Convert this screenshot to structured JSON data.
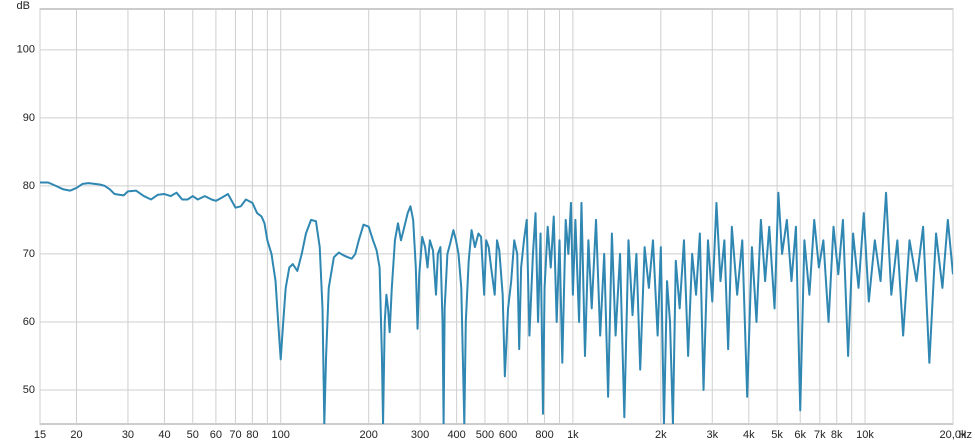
{
  "chart_data": {
    "type": "line",
    "y_label": "dB",
    "x_unit": "Hz",
    "log_x": true,
    "grid": true,
    "color": "#2f87b2",
    "xlim": [
      15,
      20000
    ],
    "ylim": [
      45,
      106
    ],
    "yticks": [
      50,
      60,
      70,
      80,
      90,
      100
    ],
    "xticks": [
      15,
      20,
      30,
      40,
      50,
      60,
      70,
      80,
      100,
      200,
      300,
      400,
      500,
      600,
      800,
      {
        "value": 1000,
        "label": "1k"
      },
      {
        "value": 2000,
        "label": "2k"
      },
      {
        "value": 3000,
        "label": "3k"
      },
      {
        "value": 4000,
        "label": "4k"
      },
      {
        "value": 5000,
        "label": "5k"
      },
      {
        "value": 6000,
        "label": "6k"
      },
      {
        "value": 7000,
        "label": "7k"
      },
      {
        "value": 8000,
        "label": "8k"
      },
      {
        "value": 10000,
        "label": "10k"
      },
      {
        "value": 20000,
        "label": "20,0k"
      }
    ],
    "xminor": [
      90,
      700,
      900,
      9000
    ],
    "x": [
      15,
      16,
      17,
      18,
      19,
      20,
      21,
      22,
      24,
      25,
      26,
      27,
      28,
      29,
      30,
      32,
      34,
      36,
      38,
      40,
      42,
      44,
      46,
      48,
      50,
      52,
      55,
      58,
      60,
      63,
      66,
      70,
      73,
      76,
      80,
      83,
      86,
      88,
      90,
      93,
      96,
      98,
      100,
      102,
      104,
      107,
      110,
      114,
      118,
      122,
      127,
      132,
      136,
      139,
      141,
      143,
      146,
      152,
      158,
      164,
      170,
      175,
      180,
      185,
      192,
      200,
      207,
      213,
      218,
      222,
      224,
      227,
      230,
      233,
      236,
      240,
      246,
      252,
      258,
      265,
      272,
      278,
      284,
      290,
      294,
      298,
      305,
      312,
      318,
      324,
      332,
      340,
      345,
      352,
      358,
      361,
      364,
      372,
      380,
      390,
      398,
      406,
      415,
      420,
      425,
      430,
      440,
      450,
      462,
      475,
      485,
      497,
      505,
      515,
      525,
      540,
      550,
      560,
      575,
      585,
      600,
      615,
      630,
      645,
      655,
      665,
      680,
      695,
      710,
      730,
      745,
      760,
      775,
      790,
      800,
      820,
      840,
      860,
      880,
      900,
      920,
      945,
      965,
      985,
      1000,
      1020,
      1050,
      1070,
      1100,
      1130,
      1160,
      1200,
      1240,
      1280,
      1320,
      1360,
      1400,
      1450,
      1500,
      1550,
      1600,
      1650,
      1700,
      1760,
      1820,
      1880,
      1950,
      2000,
      2050,
      2100,
      2150,
      2200,
      2250,
      2320,
      2400,
      2480,
      2560,
      2640,
      2720,
      2800,
      2900,
      3000,
      3100,
      3200,
      3300,
      3400,
      3500,
      3650,
      3800,
      3950,
      4100,
      4250,
      4400,
      4550,
      4700,
      4900,
      5050,
      5200,
      5400,
      5600,
      5800,
      6000,
      6200,
      6450,
      6700,
      6950,
      7200,
      7500,
      7800,
      8100,
      8400,
      8750,
      9100,
      9500,
      9900,
      10300,
      10800,
      11300,
      11800,
      12300,
      12900,
      13500,
      14200,
      15000,
      15800,
      16600,
      17500,
      18400,
      19200,
      20000
    ],
    "values": [
      80.5,
      80.5,
      80,
      79.5,
      79.3,
      79.7,
      80.3,
      80.4,
      80.2,
      80,
      79.5,
      78.8,
      78.7,
      78.6,
      79.2,
      79.3,
      78.5,
      78,
      78.7,
      78.8,
      78.5,
      79,
      78,
      78,
      78.5,
      78,
      78.5,
      78,
      77.8,
      78.3,
      78.8,
      76.8,
      77,
      78,
      77.5,
      76,
      75.5,
      74.5,
      72,
      70,
      66,
      60,
      54.5,
      60,
      65,
      68,
      68.5,
      67.5,
      70,
      73,
      75,
      74.8,
      71,
      62,
      45,
      55,
      65,
      69.5,
      70.2,
      69.8,
      69.5,
      69.3,
      70,
      72,
      74.3,
      74,
      72,
      70.5,
      68,
      55,
      45,
      60,
      64,
      62,
      58.5,
      65,
      72,
      74.5,
      72,
      74,
      76,
      77,
      75,
      68,
      59,
      67,
      72.5,
      71,
      68,
      72,
      70.5,
      64,
      70,
      71,
      60,
      45,
      62,
      70,
      71.5,
      73.5,
      72,
      70,
      65,
      55,
      45,
      60,
      69,
      73.5,
      71,
      73,
      72.5,
      64,
      72,
      71,
      68,
      64,
      72,
      70.5,
      64,
      52,
      62,
      66,
      72,
      70,
      56,
      68,
      72,
      75,
      58,
      70,
      76,
      60,
      73,
      46.5,
      65,
      74,
      68,
      75.5,
      60,
      72,
      54,
      75,
      70,
      77.5,
      64,
      75,
      60,
      77.5,
      55,
      72,
      62,
      75,
      58,
      70,
      49,
      73,
      58,
      70,
      46,
      72,
      61,
      70,
      53,
      71,
      65,
      72,
      58,
      71,
      45,
      66,
      60,
      45,
      69,
      62,
      72,
      55,
      70,
      64,
      73,
      50,
      72,
      63,
      77.5,
      66,
      72,
      56,
      74,
      64,
      72,
      49,
      71,
      60,
      75,
      66,
      74,
      62,
      79,
      70,
      75,
      66,
      74,
      47,
      72,
      64,
      75,
      68,
      72,
      60,
      74,
      67,
      75,
      55,
      73,
      65,
      76,
      63,
      72,
      66,
      79,
      64,
      72,
      58,
      72,
      66,
      74,
      54,
      73,
      65,
      75,
      67
    ]
  }
}
